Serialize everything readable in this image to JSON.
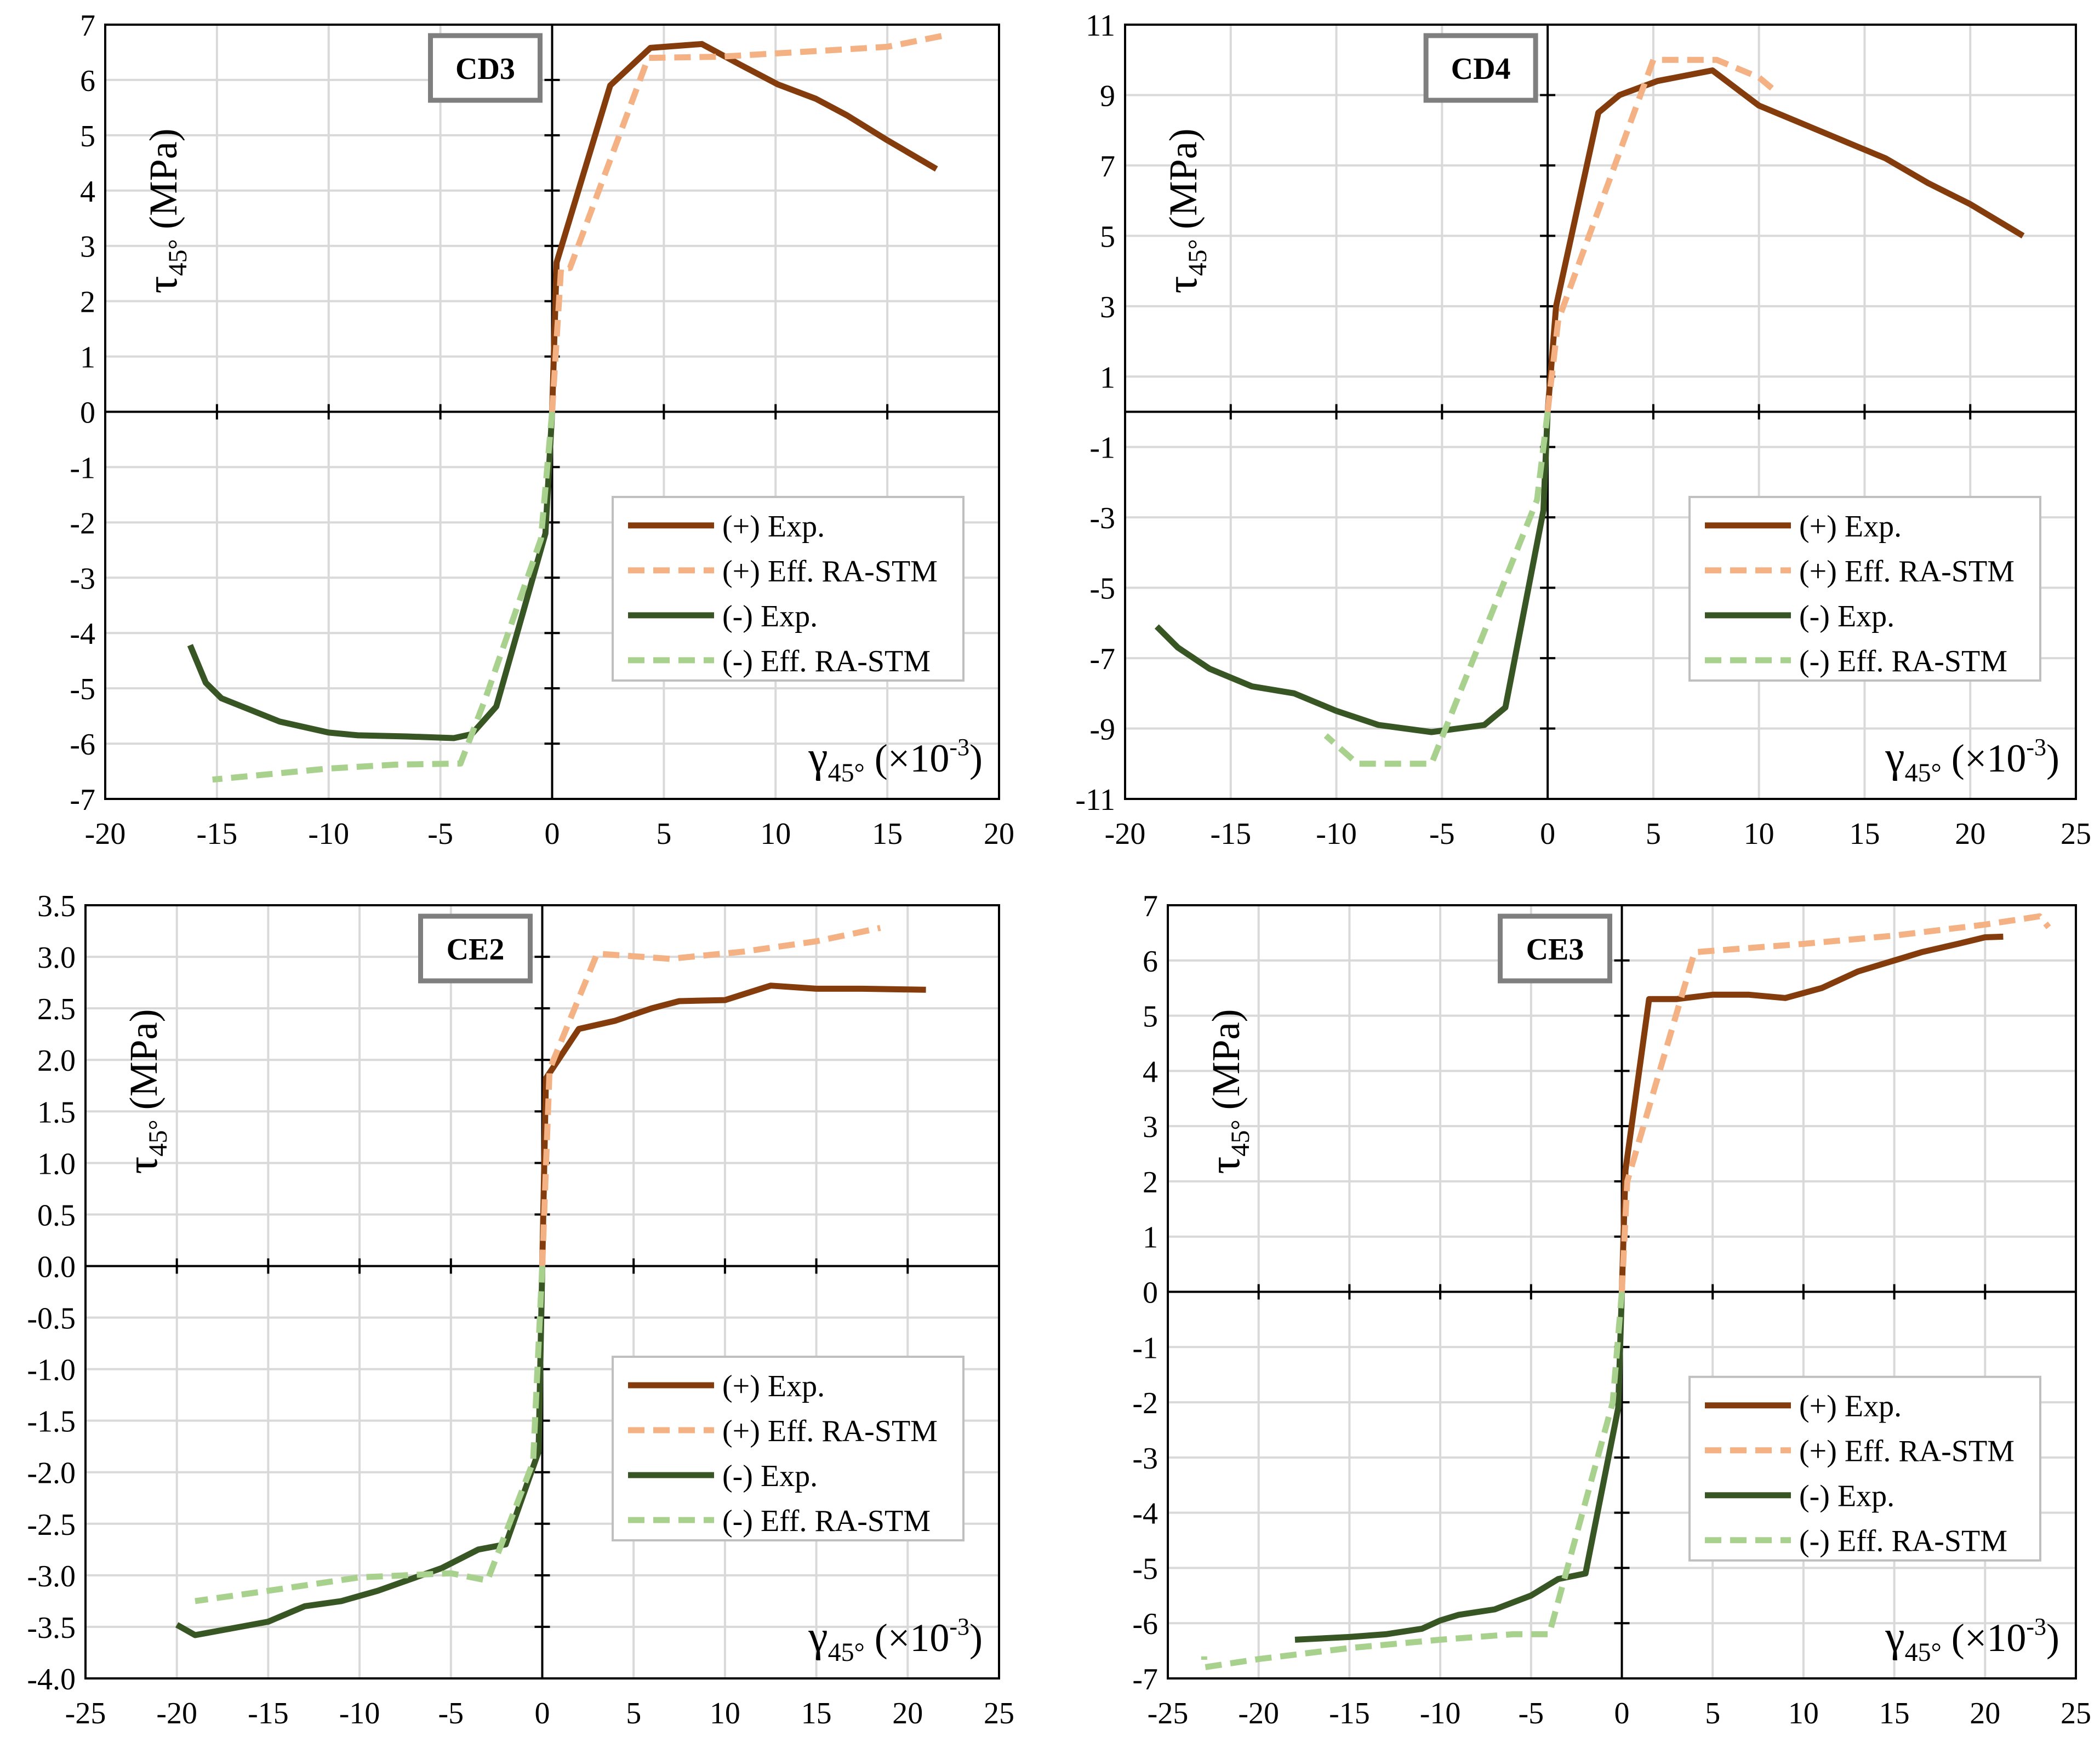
{
  "colors": {
    "pos_exp": "#843c0c",
    "pos_eff": "#f4b183",
    "neg_exp": "#375623",
    "neg_eff": "#a9d18e"
  },
  "legend": [
    "(+) Exp.",
    "(+) Eff. RA-STM",
    "(-) Exp.",
    "(-) Eff. RA-STM"
  ],
  "ylabel": {
    "main": "τ",
    "sub": "45°",
    "unit": " (MPa)"
  },
  "xlabel": {
    "main": "γ",
    "sub": "45°",
    "unit_pre": " (×10",
    "unit_sup": "-3",
    "unit_post": ")"
  },
  "chart_data": [
    {
      "type": "line",
      "title": "CD3",
      "xlim": [
        -20,
        20
      ],
      "ylim": [
        -7,
        7
      ],
      "xticks": [
        -20,
        -15,
        -10,
        -5,
        0,
        5,
        10,
        15,
        20
      ],
      "xtick_labels": [
        "-20",
        "-15",
        "-10",
        "-5",
        "0",
        "5",
        "10",
        "15",
        "20"
      ],
      "yticks": [
        -7,
        -6,
        -5,
        -4,
        -3,
        -2,
        -1,
        0,
        1,
        2,
        3,
        4,
        5,
        6,
        7
      ],
      "ytick_labels": [
        "-7",
        "-6",
        "-5",
        "-4",
        "-3",
        "-2",
        "-1",
        "0",
        "1",
        "2",
        "3",
        "4",
        "5",
        "6",
        "7"
      ],
      "series": [
        {
          "name": "(+) Exp.",
          "x": [
            0,
            0.2,
            2.6,
            4.4,
            6.7,
            8.4,
            10.1,
            11.8,
            13.2,
            15.0,
            17.2
          ],
          "y": [
            0,
            2.7,
            5.9,
            6.58,
            6.65,
            6.28,
            5.92,
            5.66,
            5.36,
            4.91,
            4.39
          ]
        },
        {
          "name": "(+) Eff. RA-STM",
          "x": [
            0,
            0.4,
            0.8,
            4.3,
            7.5,
            10,
            13,
            15,
            17.5
          ],
          "y": [
            0,
            2.6,
            2.6,
            6.4,
            6.42,
            6.48,
            6.55,
            6.6,
            6.8
          ]
        },
        {
          "name": "(-) Exp.",
          "x": [
            0,
            -0.3,
            -2.5,
            -3.6,
            -4.4,
            -6.5,
            -8.7,
            -10.0,
            -12.2,
            -14.8,
            -15.5,
            -16.2
          ],
          "y": [
            0,
            -2.2,
            -5.33,
            -5.83,
            -5.9,
            -5.87,
            -5.85,
            -5.8,
            -5.6,
            -5.18,
            -4.9,
            -4.22
          ]
        },
        {
          "name": "(-) Eff. RA-STM",
          "x": [
            0,
            -0.5,
            -3.0,
            -4.1,
            -7.0,
            -10,
            -15.2
          ],
          "y": [
            0,
            -2.3,
            -5.2,
            -6.36,
            -6.38,
            -6.45,
            -6.65
          ]
        }
      ]
    },
    {
      "type": "line",
      "title": "CD4",
      "xlim": [
        -20,
        25
      ],
      "ylim": [
        -11,
        11
      ],
      "xticks": [
        -20,
        -15,
        -10,
        -5,
        0,
        5,
        10,
        15,
        20,
        25
      ],
      "xtick_labels": [
        "-20",
        "-15",
        "-10",
        "-5",
        "0",
        "5",
        "10",
        "15",
        "20",
        "25"
      ],
      "yticks": [
        -11,
        -9,
        -7,
        -5,
        -3,
        -1,
        1,
        3,
        5,
        7,
        9,
        11
      ],
      "ytick_labels": [
        "-11",
        "-9",
        "-7",
        "-5",
        "-3",
        "-1",
        "1",
        "3",
        "5",
        "7",
        "9",
        "11"
      ],
      "series": [
        {
          "name": "(+) Exp.",
          "x": [
            0,
            0.4,
            2.4,
            3.4,
            5.2,
            7.8,
            10.0,
            12.0,
            14.0,
            16.0,
            18.0,
            20.0,
            22.5
          ],
          "y": [
            0,
            3.0,
            8.5,
            9.0,
            9.4,
            9.7,
            8.7,
            8.2,
            7.7,
            7.2,
            6.5,
            5.9,
            5.0
          ]
        },
        {
          "name": "(+) Eff. RA-STM",
          "x": [
            0,
            0.5,
            5.0,
            8.0,
            10.0,
            10.8
          ],
          "y": [
            0,
            2.6,
            10.0,
            10.0,
            9.5,
            9.1
          ]
        },
        {
          "name": "(-) Exp.",
          "x": [
            0,
            -0.2,
            -2.0,
            -3.0,
            -5.5,
            -8.0,
            -10.0,
            -12.0,
            -14.0,
            -16.0,
            -17.5,
            -18.5
          ],
          "y": [
            0,
            -2.8,
            -8.4,
            -8.9,
            -9.1,
            -8.9,
            -8.5,
            -8.0,
            -7.8,
            -7.3,
            -6.7,
            -6.1
          ]
        },
        {
          "name": "(-) Eff. RA-STM",
          "x": [
            0,
            -0.5,
            -5.5,
            -9.0,
            -10.5
          ],
          "y": [
            0,
            -2.5,
            -10.0,
            -10.0,
            -9.2
          ]
        }
      ]
    },
    {
      "type": "line",
      "title": "CE2",
      "xlim": [
        -25,
        25
      ],
      "ylim": [
        -4.0,
        3.5
      ],
      "xticks": [
        -25,
        -20,
        -15,
        -10,
        -5,
        0,
        5,
        10,
        15,
        20,
        25
      ],
      "xtick_labels": [
        "-25",
        "-20",
        "-15",
        "-10",
        "-5",
        "0",
        "5",
        "10",
        "15",
        "20",
        "25"
      ],
      "yticks": [
        -4.0,
        -3.5,
        -3.0,
        -2.5,
        -2.0,
        -1.5,
        -1.0,
        -0.5,
        0.0,
        0.5,
        1.0,
        1.5,
        2.0,
        2.5,
        3.0,
        3.5
      ],
      "ytick_labels": [
        "-4.0",
        "-3.5",
        "-3.0",
        "-2.5",
        "-2.0",
        "-1.5",
        "-1.0",
        "-0.5",
        "0.0",
        "0.5",
        "1.0",
        "1.5",
        "2.0",
        "2.5",
        "3.0",
        "3.5"
      ],
      "series": [
        {
          "name": "(+) Exp.",
          "x": [
            0,
            0.2,
            2.0,
            4.0,
            6.0,
            7.5,
            10.0,
            12.5,
            15.0,
            17.5,
            21.0
          ],
          "y": [
            0,
            1.82,
            2.3,
            2.38,
            2.5,
            2.57,
            2.58,
            2.72,
            2.69,
            2.69,
            2.68
          ]
        },
        {
          "name": "(+) Eff. RA-STM",
          "x": [
            0,
            0.4,
            0.5,
            3.0,
            7.0,
            11.0,
            15.0,
            18.5
          ],
          "y": [
            0,
            1.9,
            1.95,
            3.03,
            2.98,
            3.05,
            3.15,
            3.28
          ]
        },
        {
          "name": "(-) Exp.",
          "x": [
            0,
            -0.2,
            -2.0,
            -3.5,
            -5.5,
            -9.0,
            -11.0,
            -13.0,
            -15.0,
            -19.0,
            -20.0
          ],
          "y": [
            0,
            -1.8,
            -2.7,
            -2.75,
            -2.93,
            -3.15,
            -3.25,
            -3.3,
            -3.45,
            -3.58,
            -3.48
          ]
        },
        {
          "name": "(-) Eff. RA-STM",
          "x": [
            0,
            -0.5,
            -3.0,
            -5.0,
            -10.0,
            -15.0,
            -19.0
          ],
          "y": [
            0,
            -1.9,
            -3.05,
            -2.98,
            -3.02,
            -3.15,
            -3.25
          ]
        }
      ]
    },
    {
      "type": "line",
      "title": "CE3",
      "xlim": [
        -25,
        25
      ],
      "ylim": [
        -7,
        7
      ],
      "xticks": [
        -25,
        -20,
        -15,
        -10,
        -5,
        0,
        5,
        10,
        15,
        20,
        25
      ],
      "xtick_labels": [
        "-25",
        "-20",
        "-15",
        "-10",
        "-5",
        "0",
        "5",
        "10",
        "15",
        "20",
        "25"
      ],
      "yticks": [
        -7,
        -6,
        -5,
        -4,
        -3,
        -2,
        -1,
        0,
        1,
        2,
        3,
        4,
        5,
        6,
        7
      ],
      "ytick_labels": [
        "-7",
        "-6",
        "-5",
        "-4",
        "-3",
        "-2",
        "-1",
        "0",
        "1",
        "2",
        "3",
        "4",
        "5",
        "6",
        "7"
      ],
      "series": [
        {
          "name": "(+) Exp.",
          "x": [
            0,
            0.2,
            1.5,
            3.0,
            5.0,
            7.0,
            9.0,
            11.0,
            13.0,
            15.0,
            16.5,
            18.5,
            20.0,
            21.0
          ],
          "y": [
            0,
            2.2,
            5.3,
            5.3,
            5.38,
            5.38,
            5.32,
            5.5,
            5.8,
            6.0,
            6.15,
            6.3,
            6.42,
            6.43
          ]
        },
        {
          "name": "(+) Eff. RA-STM",
          "x": [
            0,
            0.3,
            4.0,
            6.0,
            10.0,
            15.0,
            20.0,
            23.0,
            23.5
          ],
          "y": [
            0,
            2.0,
            6.15,
            6.2,
            6.3,
            6.45,
            6.65,
            6.8,
            6.6
          ]
        },
        {
          "name": "(-) Exp.",
          "x": [
            0,
            -0.2,
            -2.0,
            -3.5,
            -5.0,
            -7.0,
            -9.0,
            -10.0,
            -11.0,
            -13.0,
            -15.0,
            -18.0
          ],
          "y": [
            0,
            -2.1,
            -5.1,
            -5.2,
            -5.5,
            -5.75,
            -5.85,
            -5.95,
            -6.1,
            -6.2,
            -6.25,
            -6.3
          ]
        },
        {
          "name": "(-) Eff. RA-STM",
          "x": [
            0,
            -0.5,
            -4.0,
            -6.0,
            -10.0,
            -15.0,
            -20.0,
            -23.0,
            -23.0
          ],
          "y": [
            0,
            -2.0,
            -6.2,
            -6.2,
            -6.3,
            -6.45,
            -6.65,
            -6.8,
            -6.6
          ]
        }
      ]
    }
  ]
}
